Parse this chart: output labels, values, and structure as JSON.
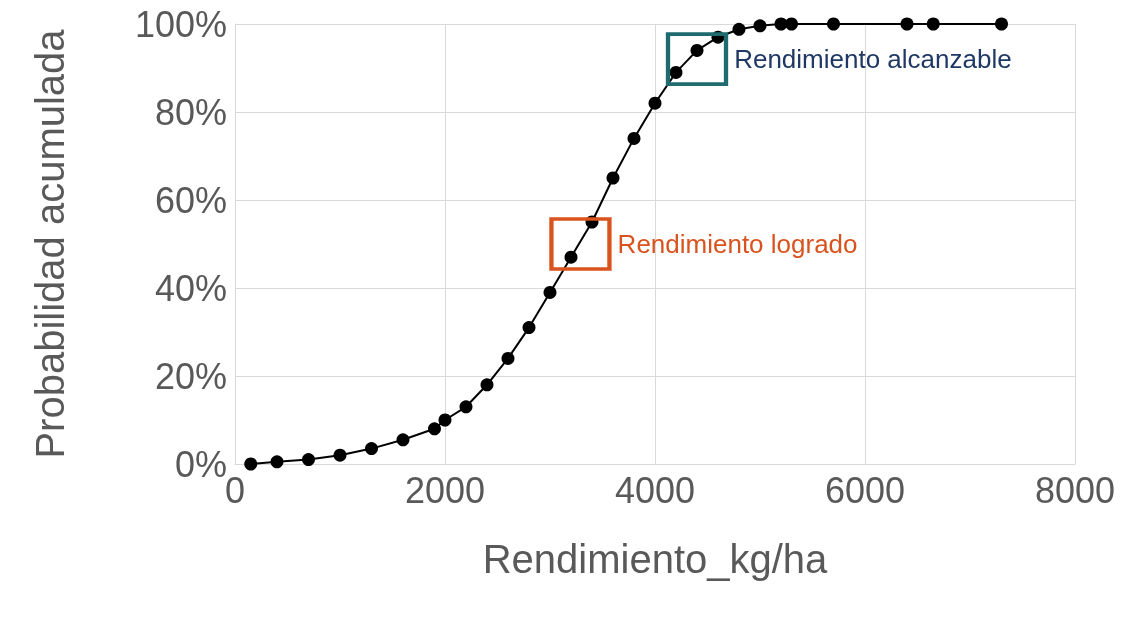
{
  "chart_data": {
    "type": "line",
    "xlabel": "Rendimiento_kg/ha",
    "ylabel": "Probabilidad acumulada",
    "x": [
      150,
      400,
      700,
      1000,
      1300,
      1600,
      1900,
      2000,
      2200,
      2400,
      2600,
      2800,
      3000,
      3200,
      3400,
      3600,
      3800,
      4000,
      4200,
      4400,
      4600,
      4800,
      5000,
      5200,
      5300,
      5700,
      6400,
      6650,
      7300
    ],
    "series": [
      {
        "color": "#000000",
        "values": [
          0,
          0.5,
          1,
          2,
          3.5,
          5.5,
          8,
          10,
          13,
          18,
          24,
          31,
          39,
          47,
          55,
          65,
          74,
          82,
          89,
          94,
          97,
          98.8,
          99.6,
          100,
          100,
          100,
          100,
          100,
          100
        ]
      }
    ],
    "xlim": [
      0,
      8000
    ],
    "xticks": [
      0,
      2000,
      4000,
      6000,
      8000
    ],
    "ylim": [
      0,
      100
    ],
    "yticks": [
      {
        "value": 0,
        "label": "0%"
      },
      {
        "value": 20,
        "label": "20%"
      },
      {
        "value": 40,
        "label": "40%"
      },
      {
        "value": 60,
        "label": "60%"
      },
      {
        "value": 80,
        "label": "80%"
      },
      {
        "value": 100,
        "label": "100%"
      }
    ],
    "grid": true,
    "marker": "circle",
    "line_style": "solid",
    "annotations": [
      {
        "text": "Rendimiento alcanzable",
        "x": 4400,
        "y": 92
      },
      {
        "text": "Rendimiento logrado",
        "x": 3290,
        "y": 50
      }
    ]
  }
}
